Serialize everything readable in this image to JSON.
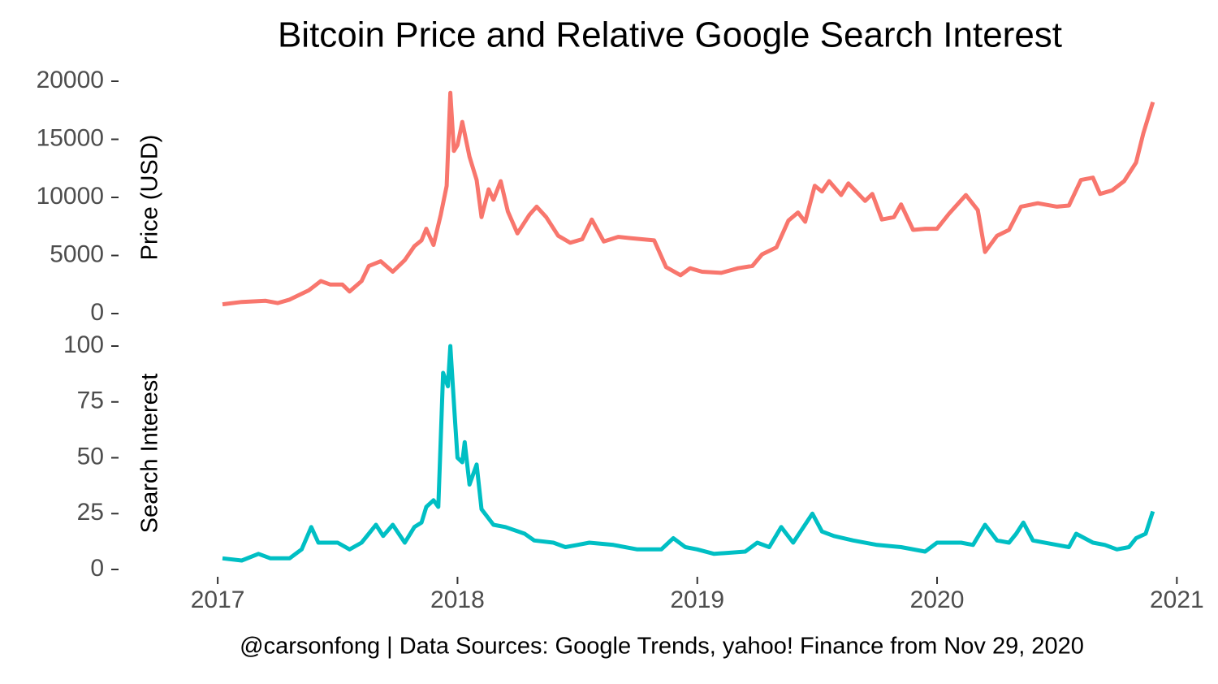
{
  "chart_data": [
    {
      "type": "line",
      "title": "Bitcoin Price and Relative Google Search Interest",
      "y_label": "Price (USD)",
      "color": "#F8766D",
      "x": [
        2017.02,
        2017.1,
        2017.2,
        2017.25,
        2017.3,
        2017.38,
        2017.43,
        2017.47,
        2017.52,
        2017.55,
        2017.6,
        2017.63,
        2017.68,
        2017.73,
        2017.78,
        2017.82,
        2017.85,
        2017.87,
        2017.9,
        2017.93,
        2017.955,
        2017.97,
        2017.985,
        2018.0,
        2018.02,
        2018.05,
        2018.08,
        2018.1,
        2018.13,
        2018.15,
        2018.18,
        2018.21,
        2018.25,
        2018.3,
        2018.33,
        2018.37,
        2018.42,
        2018.47,
        2018.52,
        2018.56,
        2018.61,
        2018.67,
        2018.72,
        2018.77,
        2018.82,
        2018.87,
        2018.93,
        2018.97,
        2019.02,
        2019.1,
        2019.17,
        2019.23,
        2019.27,
        2019.33,
        2019.38,
        2019.42,
        2019.45,
        2019.49,
        2019.52,
        2019.55,
        2019.6,
        2019.63,
        2019.7,
        2019.73,
        2019.77,
        2019.82,
        2019.85,
        2019.9,
        2019.95,
        2020.0,
        2020.05,
        2020.12,
        2020.17,
        2020.2,
        2020.25,
        2020.3,
        2020.35,
        2020.42,
        2020.5,
        2020.55,
        2020.6,
        2020.65,
        2020.68,
        2020.73,
        2020.78,
        2020.83,
        2020.86,
        2020.9
      ],
      "values": [
        800,
        1000,
        1100,
        900,
        1200,
        2000,
        2800,
        2500,
        2500,
        1900,
        2800,
        4100,
        4500,
        3600,
        4600,
        5800,
        6300,
        7300,
        5900,
        8500,
        11000,
        19000,
        14000,
        14500,
        16500,
        13500,
        11500,
        8300,
        10700,
        9800,
        11400,
        8800,
        6900,
        8500,
        9200,
        8300,
        6700,
        6100,
        6400,
        8100,
        6200,
        6600,
        6500,
        6400,
        6300,
        4000,
        3300,
        3900,
        3600,
        3500,
        3900,
        4100,
        5100,
        5700,
        8000,
        8700,
        7900,
        11000,
        10500,
        11400,
        10200,
        11200,
        9700,
        10300,
        8100,
        8300,
        9400,
        7200,
        7300,
        7300,
        8600,
        10200,
        8900,
        5300,
        6700,
        7200,
        9200,
        9500,
        9200,
        9300,
        11500,
        11700,
        10300,
        10600,
        11400,
        13000,
        15500,
        18200
      ],
      "xlim": [
        2016.6,
        2021.07
      ],
      "ylim": [
        0,
        20000
      ],
      "yticks": [
        0,
        5000,
        10000,
        15000,
        20000
      ]
    },
    {
      "type": "line",
      "y_label": "Search Interest",
      "color": "#00BFC4",
      "caption": "@carsonfong | Data Sources: Google Trends, yahoo! Finance from Nov 29, 2020",
      "x": [
        2017.02,
        2017.1,
        2017.17,
        2017.22,
        2017.3,
        2017.35,
        2017.39,
        2017.42,
        2017.5,
        2017.55,
        2017.6,
        2017.63,
        2017.66,
        2017.69,
        2017.73,
        2017.78,
        2017.82,
        2017.85,
        2017.87,
        2017.9,
        2017.92,
        2017.94,
        2017.96,
        2017.97,
        2017.99,
        2018.0,
        2018.02,
        2018.03,
        2018.05,
        2018.08,
        2018.1,
        2018.15,
        2018.2,
        2018.28,
        2018.32,
        2018.4,
        2018.45,
        2018.5,
        2018.55,
        2018.65,
        2018.75,
        2018.85,
        2018.9,
        2018.95,
        2019.0,
        2019.07,
        2019.2,
        2019.25,
        2019.3,
        2019.35,
        2019.4,
        2019.48,
        2019.52,
        2019.57,
        2019.65,
        2019.75,
        2019.85,
        2019.95,
        2020.0,
        2020.1,
        2020.15,
        2020.2,
        2020.25,
        2020.3,
        2020.33,
        2020.36,
        2020.4,
        2020.5,
        2020.55,
        2020.58,
        2020.65,
        2020.7,
        2020.75,
        2020.8,
        2020.83,
        2020.87,
        2020.9
      ],
      "values": [
        5,
        4,
        7,
        5,
        5,
        9,
        19,
        12,
        12,
        9,
        12,
        16,
        20,
        15,
        20,
        12,
        19,
        21,
        28,
        31,
        28,
        88,
        82,
        100,
        66,
        50,
        48,
        57,
        38,
        47,
        27,
        20,
        19,
        16,
        13,
        12,
        10,
        11,
        12,
        11,
        9,
        9,
        14,
        10,
        9,
        7,
        8,
        12,
        10,
        19,
        12,
        25,
        17,
        15,
        13,
        11,
        10,
        8,
        12,
        12,
        11,
        20,
        13,
        12,
        16,
        21,
        13,
        11,
        10,
        16,
        12,
        11,
        9,
        10,
        14,
        16,
        26
      ],
      "xlim": [
        2016.6,
        2021.07
      ],
      "ylim": [
        0,
        100
      ],
      "yticks": [
        0,
        25,
        50,
        75,
        100
      ],
      "xticks": [
        2017,
        2018,
        2019,
        2020,
        2021
      ]
    }
  ]
}
